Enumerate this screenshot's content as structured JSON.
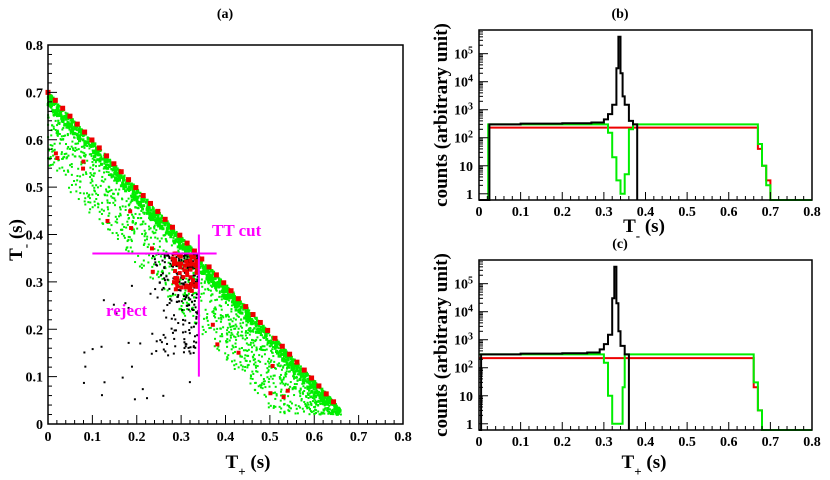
{
  "chart_data": [
    {
      "id": "a",
      "type": "scatter",
      "title": "(a)",
      "xlabel": "T+ (s)",
      "ylabel": "T- (s)",
      "xlim": [
        0,
        0.8
      ],
      "ylim": [
        0,
        0.8
      ],
      "xticks": [
        "0",
        "0.1",
        "0.2",
        "0.3",
        "0.4",
        "0.5",
        "0.6",
        "0.7",
        "0.8"
      ],
      "yticks": [
        "0",
        "0.1",
        "0.2",
        "0.3",
        "0.4",
        "0.5",
        "0.6",
        "0.7",
        "0.8"
      ],
      "diagonal_line": {
        "x": [
          0,
          0.67
        ],
        "y": [
          0.7,
          0.02
        ]
      },
      "cut_lines": {
        "horizontal": {
          "y": 0.36,
          "x": [
            0.1,
            0.38
          ]
        },
        "vertical": {
          "x": 0.34,
          "y": [
            0.1,
            0.4
          ]
        }
      },
      "annotations": [
        {
          "text": "TT cut",
          "x": 0.4,
          "y": 0.39
        },
        {
          "text": "reject",
          "x": 0.12,
          "y": 0.23
        }
      ],
      "colors": {
        "green": "#00ee00",
        "red": "#ee0000",
        "black": "#000000",
        "cut": "#ff00ff"
      }
    },
    {
      "id": "b",
      "type": "line",
      "title": "(b)",
      "xlabel": "T- (s)",
      "ylabel": "counts (arbitrary unit)",
      "xlim": [
        0,
        0.8
      ],
      "ylog": true,
      "ylim": [
        0.6,
        700000
      ],
      "xticks": [
        "0",
        "0.1",
        "0.2",
        "0.3",
        "0.4",
        "0.5",
        "0.6",
        "0.7",
        "0.8"
      ],
      "yticks": [
        {
          "label": "1",
          "exp": "",
          "v": 1
        },
        {
          "label": "10",
          "exp": "",
          "v": 10
        },
        {
          "label": "10",
          "exp": "2",
          "v": 100
        },
        {
          "label": "10",
          "exp": "3",
          "v": 1000
        },
        {
          "label": "10",
          "exp": "4",
          "v": 10000
        },
        {
          "label": "10",
          "exp": "5",
          "v": 100000
        }
      ],
      "series": [
        {
          "name": "black",
          "color": "#000000",
          "x": [
            0,
            0.02,
            0.025,
            0.1,
            0.2,
            0.27,
            0.3,
            0.31,
            0.32,
            0.33,
            0.335,
            0.34,
            0.345,
            0.35,
            0.36,
            0.37,
            0.38
          ],
          "y": [
            0.6,
            0.6,
            300,
            320,
            330,
            350,
            450,
            700,
            1500,
            30000,
            400000,
            20000,
            3000,
            1500,
            400,
            300,
            0.6
          ]
        },
        {
          "name": "red",
          "color": "#ee0000",
          "x": [
            0.025,
            0.1,
            0.2,
            0.3,
            0.4,
            0.5,
            0.6,
            0.66,
            0.67,
            0.68,
            0.69,
            0.7
          ],
          "y": [
            230,
            230,
            230,
            230,
            230,
            230,
            230,
            230,
            40,
            10,
            3,
            0.6
          ]
        },
        {
          "name": "green",
          "color": "#00ee00",
          "x": [
            0,
            0.02,
            0.022,
            0.025,
            0.1,
            0.2,
            0.3,
            0.31,
            0.32,
            0.33,
            0.34,
            0.35,
            0.36,
            0.37,
            0.4,
            0.5,
            0.6,
            0.66,
            0.67,
            0.68,
            0.69,
            0.7,
            0.8
          ],
          "y": [
            0.6,
            0.6,
            300,
            300,
            300,
            300,
            300,
            150,
            20,
            3,
            1,
            5,
            200,
            300,
            300,
            300,
            300,
            300,
            60,
            10,
            2,
            0.6,
            0.6
          ]
        }
      ]
    },
    {
      "id": "c",
      "type": "line",
      "title": "(c)",
      "xlabel": "T+ (s)",
      "ylabel": "counts (arbitrary unit)",
      "xlim": [
        0,
        0.8
      ],
      "ylog": true,
      "ylim": [
        0.6,
        700000
      ],
      "xticks": [
        "0",
        "0.1",
        "0.2",
        "0.3",
        "0.4",
        "0.5",
        "0.6",
        "0.7",
        "0.8"
      ],
      "yticks": [
        {
          "label": "1",
          "exp": "",
          "v": 1
        },
        {
          "label": "10",
          "exp": "",
          "v": 10
        },
        {
          "label": "10",
          "exp": "2",
          "v": 100
        },
        {
          "label": "10",
          "exp": "3",
          "v": 1000
        },
        {
          "label": "10",
          "exp": "4",
          "v": 10000
        },
        {
          "label": "10",
          "exp": "5",
          "v": 100000
        }
      ],
      "series": [
        {
          "name": "black",
          "color": "#000000",
          "x": [
            0,
            0.005,
            0.1,
            0.2,
            0.26,
            0.29,
            0.3,
            0.31,
            0.32,
            0.325,
            0.33,
            0.335,
            0.34,
            0.35,
            0.36
          ],
          "y": [
            0.6,
            300,
            320,
            330,
            350,
            450,
            700,
            1500,
            30000,
            400000,
            20000,
            2000,
            600,
            300,
            0.6
          ]
        },
        {
          "name": "red",
          "color": "#ee0000",
          "x": [
            0,
            0.1,
            0.2,
            0.3,
            0.4,
            0.5,
            0.6,
            0.65,
            0.66,
            0.67,
            0.68
          ],
          "y": [
            220,
            220,
            220,
            220,
            220,
            220,
            220,
            220,
            20,
            3,
            0.6
          ]
        },
        {
          "name": "green",
          "color": "#00ee00",
          "x": [
            0,
            0.1,
            0.2,
            0.29,
            0.3,
            0.31,
            0.32,
            0.33,
            0.34,
            0.345,
            0.35,
            0.4,
            0.5,
            0.6,
            0.65,
            0.66,
            0.67,
            0.68,
            0.8
          ],
          "y": [
            300,
            300,
            300,
            300,
            150,
            10,
            1,
            1,
            1,
            20,
            300,
            300,
            300,
            300,
            300,
            30,
            3,
            0.6,
            0.6
          ]
        }
      ]
    }
  ]
}
